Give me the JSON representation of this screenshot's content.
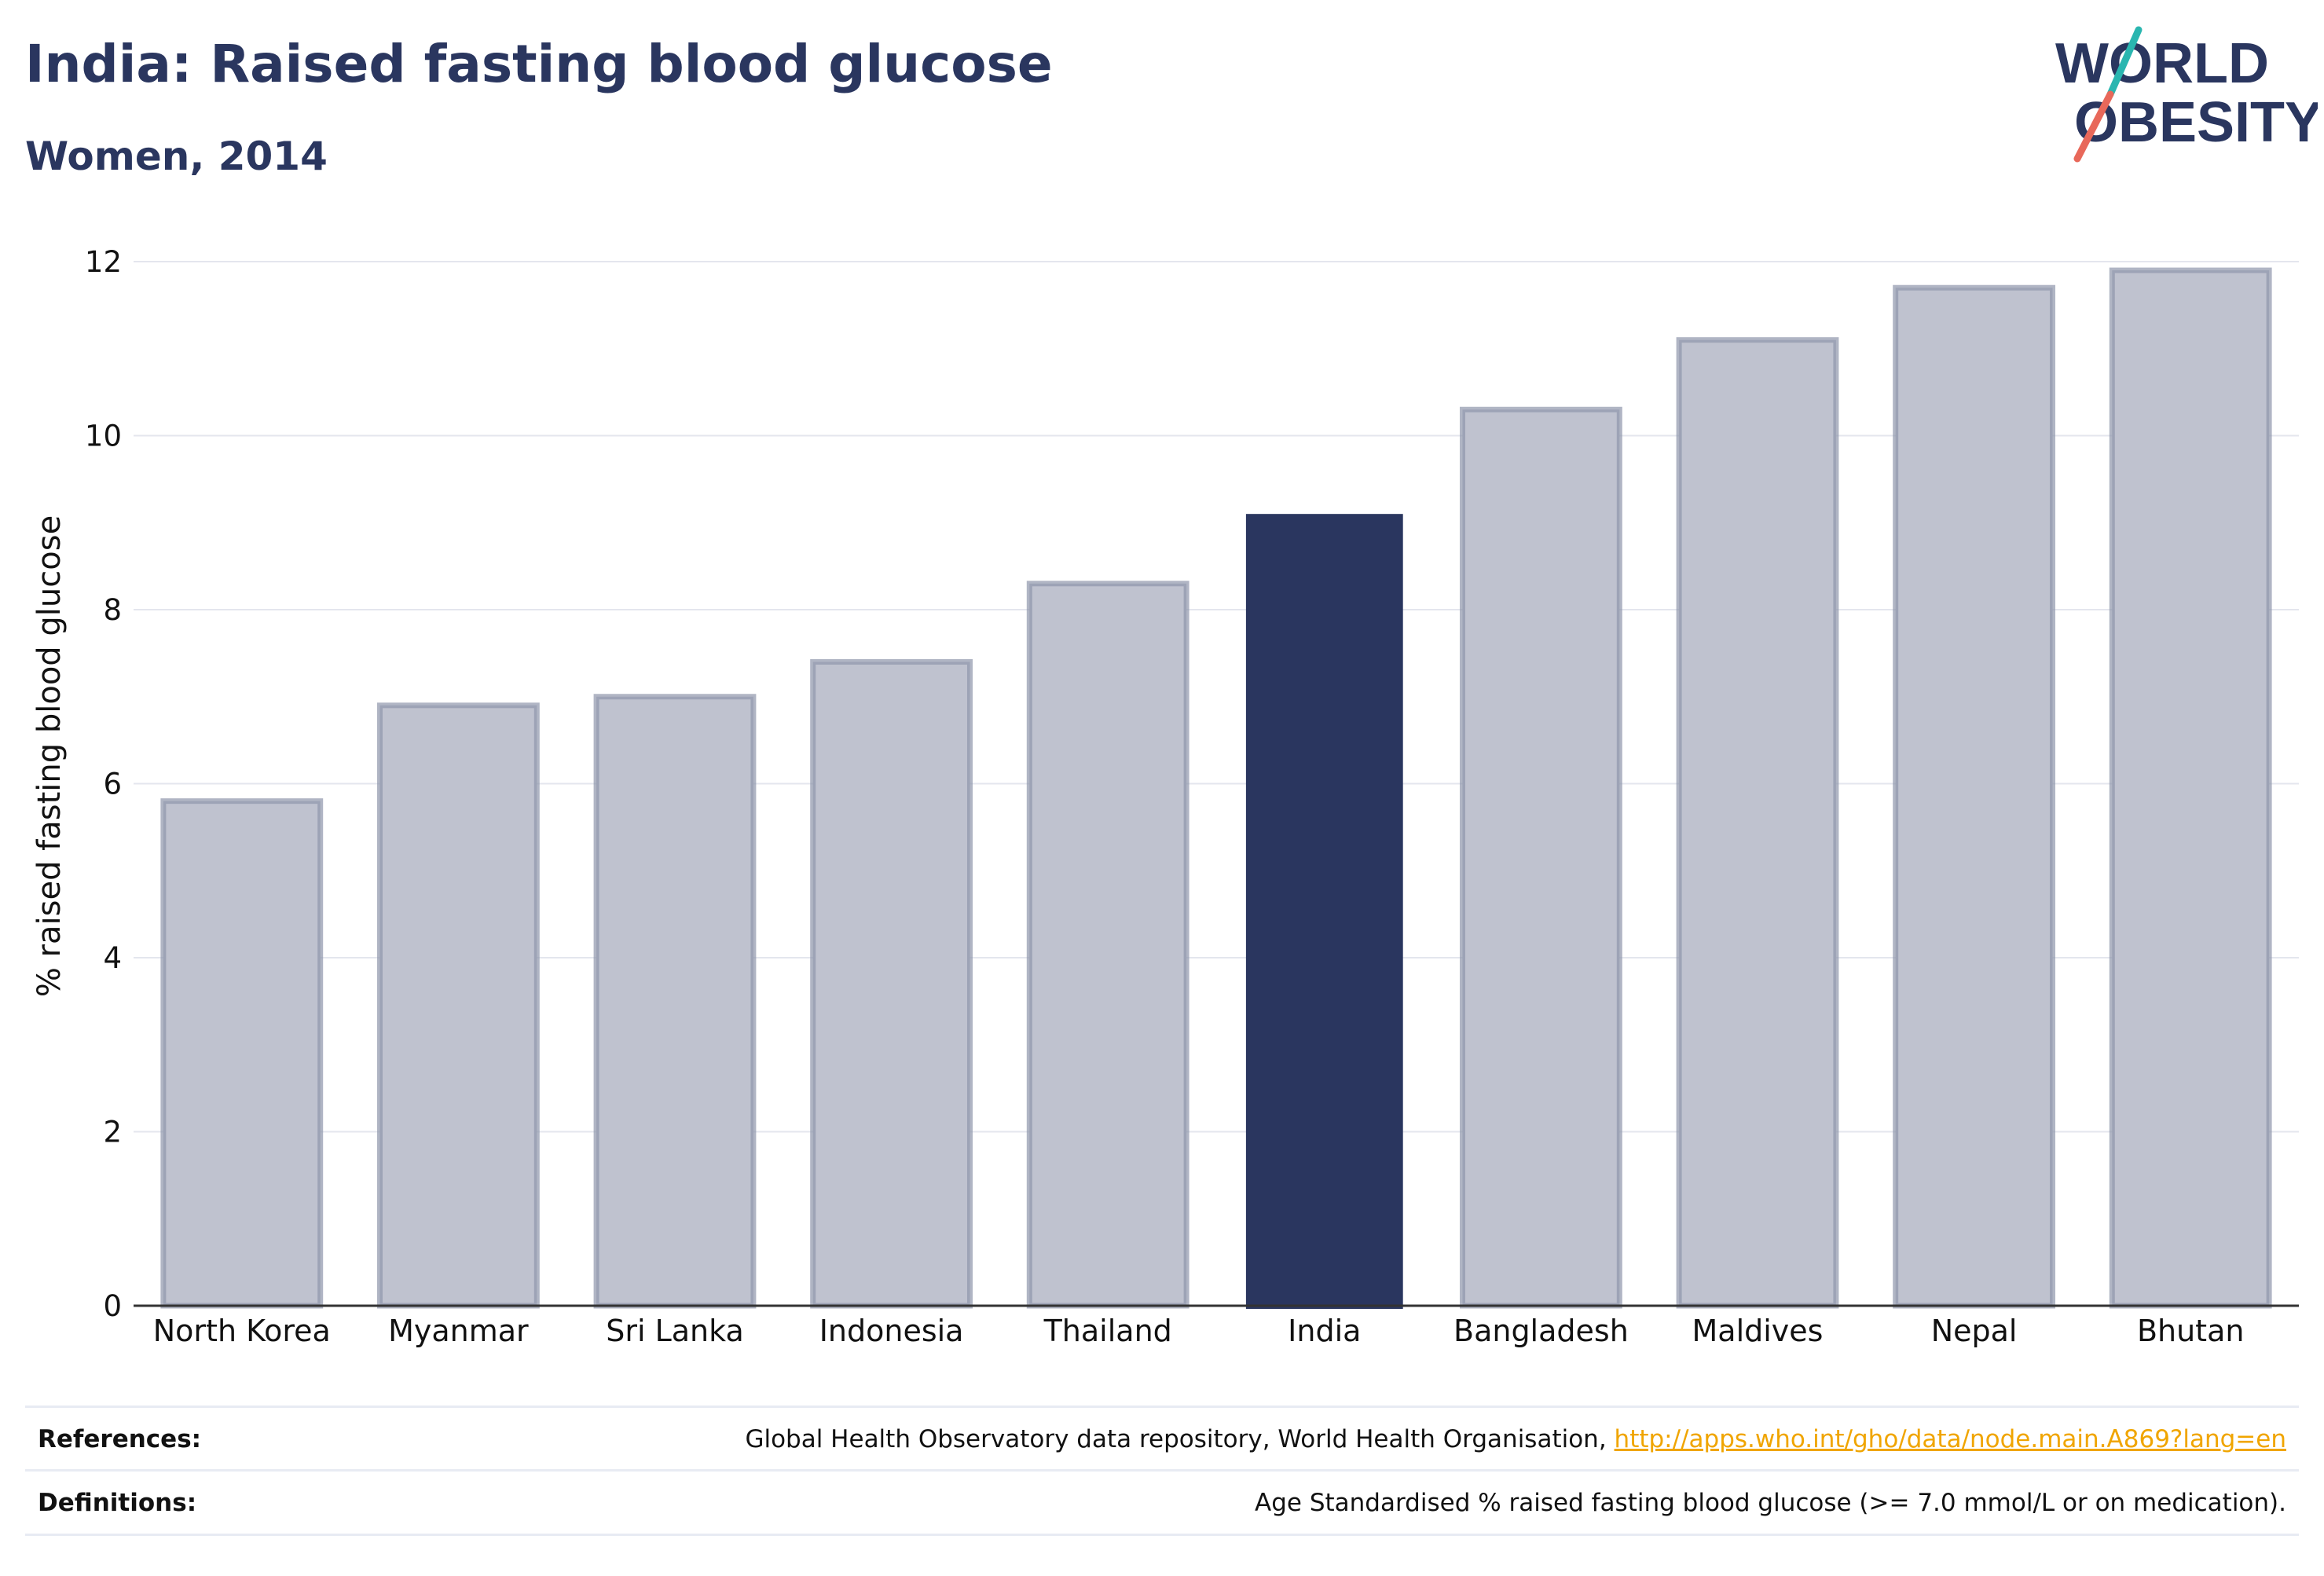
{
  "header": {
    "title": "India: Raised fasting blood glucose",
    "subtitle": "Women, 2014"
  },
  "logo": {
    "line1": "WORLD",
    "line2": "OBESITY",
    "colors": {
      "text": "#2a365f",
      "slash_top": "#2ab6b0",
      "slash_bottom": "#e8685a"
    }
  },
  "colors": {
    "highlight": "#2a365f",
    "bar": "#bfc2cf",
    "bar_border": "#8f95ab",
    "grid": "#e4e6ee",
    "axis": "#333333",
    "link": "#f0a500"
  },
  "chart_data": {
    "type": "bar",
    "title": "",
    "xlabel": "",
    "ylabel": "% raised fasting blood glucose",
    "ylim": [
      0,
      12
    ],
    "yticks": [
      0,
      2,
      4,
      6,
      8,
      10,
      12
    ],
    "grid": true,
    "highlight": "India",
    "categories": [
      "North Korea",
      "Myanmar",
      "Sri Lanka",
      "Indonesia",
      "Thailand",
      "India",
      "Bangladesh",
      "Maldives",
      "Nepal",
      "Bhutan"
    ],
    "values": [
      5.8,
      6.9,
      7.0,
      7.4,
      8.3,
      9.1,
      10.3,
      11.1,
      11.7,
      11.9
    ]
  },
  "footer": {
    "references_label": "References:",
    "references_text": "Global Health Observatory data repository, World Health Organisation, ",
    "references_link": "http://apps.who.int/gho/data/node.main.A869?lang=en",
    "definitions_label": "Definitions:",
    "definitions_text": "Age Standardised % raised fasting blood glucose (>= 7.0 mmol/L or on medication)."
  }
}
